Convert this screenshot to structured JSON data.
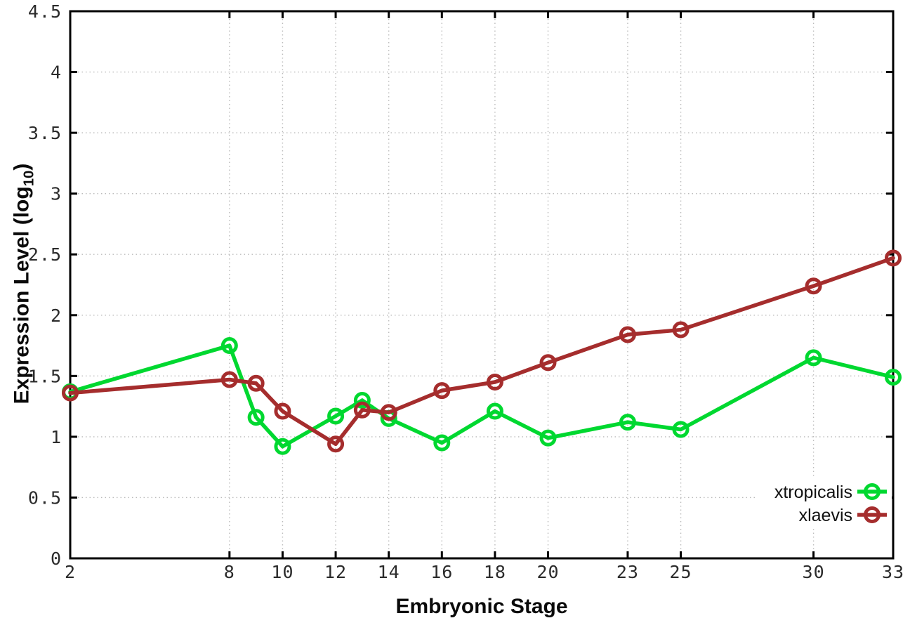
{
  "chart_data": {
    "type": "line",
    "title": "",
    "xlabel": "Embryonic Stage",
    "ylabel": "Expression Level (log10)",
    "ylabel_parts": {
      "prefix": "Expression Level (log",
      "sub": "10",
      "suffix": ")"
    },
    "xlim": [
      2,
      33
    ],
    "ylim": [
      0,
      4.5
    ],
    "x_ticks": [
      2,
      8,
      10,
      12,
      14,
      16,
      18,
      20,
      23,
      25,
      30,
      33
    ],
    "y_ticks": [
      0,
      0.5,
      1,
      1.5,
      2,
      2.5,
      3,
      3.5,
      4,
      4.5
    ],
    "grid": true,
    "legend_position": "bottom-right",
    "x": [
      2,
      8,
      9,
      10,
      12,
      13,
      14,
      16,
      18,
      20,
      23,
      25,
      30,
      33
    ],
    "series": [
      {
        "name": "xtropicalis",
        "color": "#00d830",
        "values": [
          1.37,
          1.75,
          1.16,
          0.92,
          1.17,
          1.3,
          1.15,
          0.95,
          1.21,
          0.99,
          1.12,
          1.06,
          1.65,
          1.49
        ]
      },
      {
        "name": "xlaevis",
        "color": "#a52d2d",
        "values": [
          1.36,
          1.47,
          1.44,
          1.21,
          0.94,
          1.22,
          1.2,
          1.38,
          1.45,
          1.61,
          1.84,
          1.88,
          2.24,
          2.47
        ]
      }
    ],
    "style": {
      "grid_color": "#bbbbbb",
      "border_color": "#000000",
      "tick_label_color": "#2b2b2b",
      "background": "#ffffff"
    }
  }
}
